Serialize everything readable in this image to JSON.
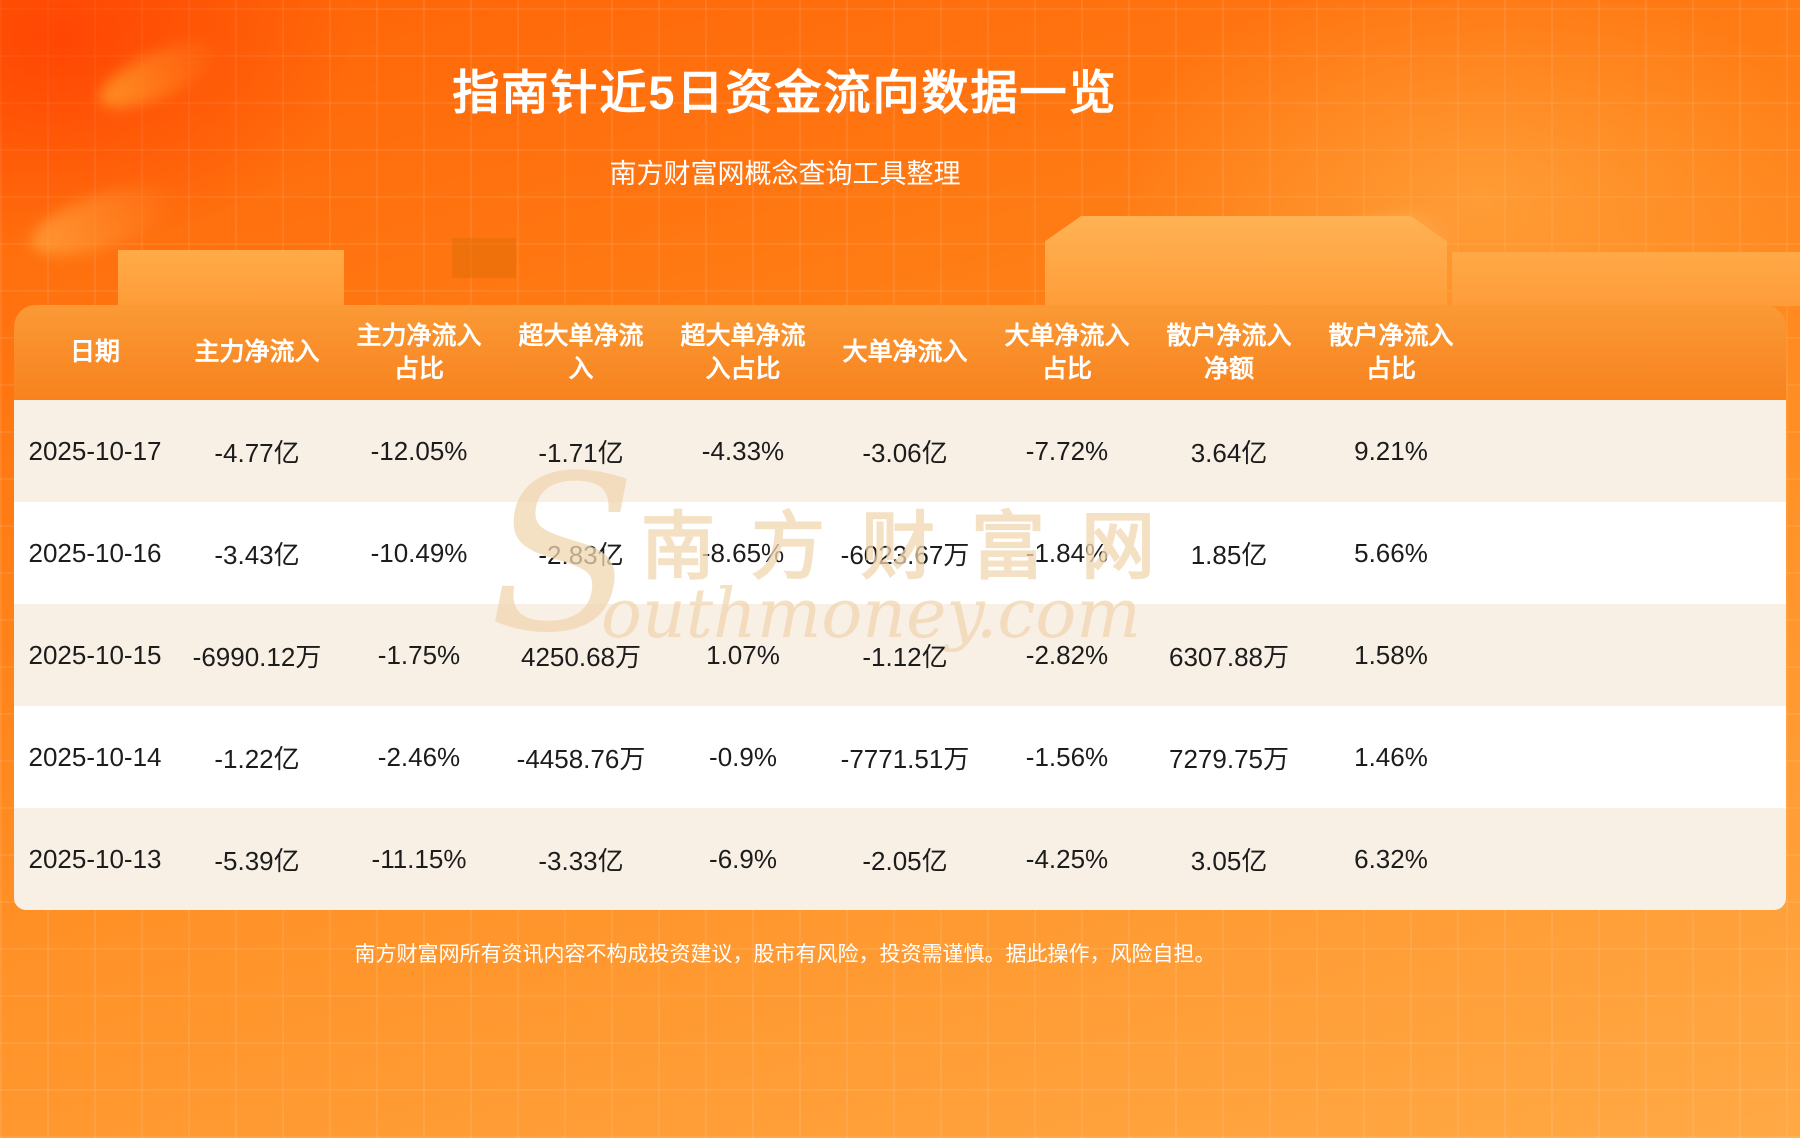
{
  "header": {
    "title": "指南针近5日资金流向数据一览",
    "subtitle": "南方财富网概念查询工具整理"
  },
  "watermark": {
    "initial": "S",
    "cn": "南方财富网",
    "rest": "outhmoney.com"
  },
  "chart_data": {
    "type": "table",
    "title": "指南针近5日资金流向数据一览",
    "columns": [
      "日期",
      "主力净流入",
      "主力净流入\n占比",
      "超大单净流\n入",
      "超大单净流\n入占比",
      "大单净流入",
      "大单净流入\n占比",
      "散户净流入\n净额",
      "散户净流入\n占比"
    ],
    "rows": [
      [
        "2025-10-17",
        "-4.77亿",
        "-12.05%",
        "-1.71亿",
        "-4.33%",
        "-3.06亿",
        "-7.72%",
        "3.64亿",
        "9.21%"
      ],
      [
        "2025-10-16",
        "-3.43亿",
        "-10.49%",
        "-2.83亿",
        "-8.65%",
        "-6023.67万",
        "-1.84%",
        "1.85亿",
        "5.66%"
      ],
      [
        "2025-10-15",
        "-6990.12万",
        "-1.75%",
        "4250.68万",
        "1.07%",
        "-1.12亿",
        "-2.82%",
        "6307.88万",
        "1.58%"
      ],
      [
        "2025-10-14",
        "-1.22亿",
        "-2.46%",
        "-4458.76万",
        "-0.9%",
        "-7771.51万",
        "-1.56%",
        "7279.75万",
        "1.46%"
      ],
      [
        "2025-10-13",
        "-5.39亿",
        "-11.15%",
        "-3.33亿",
        "-6.9%",
        "-2.05亿",
        "-4.25%",
        "3.05亿",
        "6.32%"
      ]
    ]
  },
  "footer": {
    "disclaimer": "南方财富网所有资讯内容不构成投资建议，股市有风险，投资需谨慎。据此操作，风险自担。"
  },
  "colors": {
    "background_top": "#ff6206",
    "background_bottom": "#ffa945",
    "header_bg": "#f8821e",
    "row_odd": "#f8efe5",
    "row_even": "#ffffff",
    "text": "#1c1c1c",
    "title": "#ffffff"
  }
}
